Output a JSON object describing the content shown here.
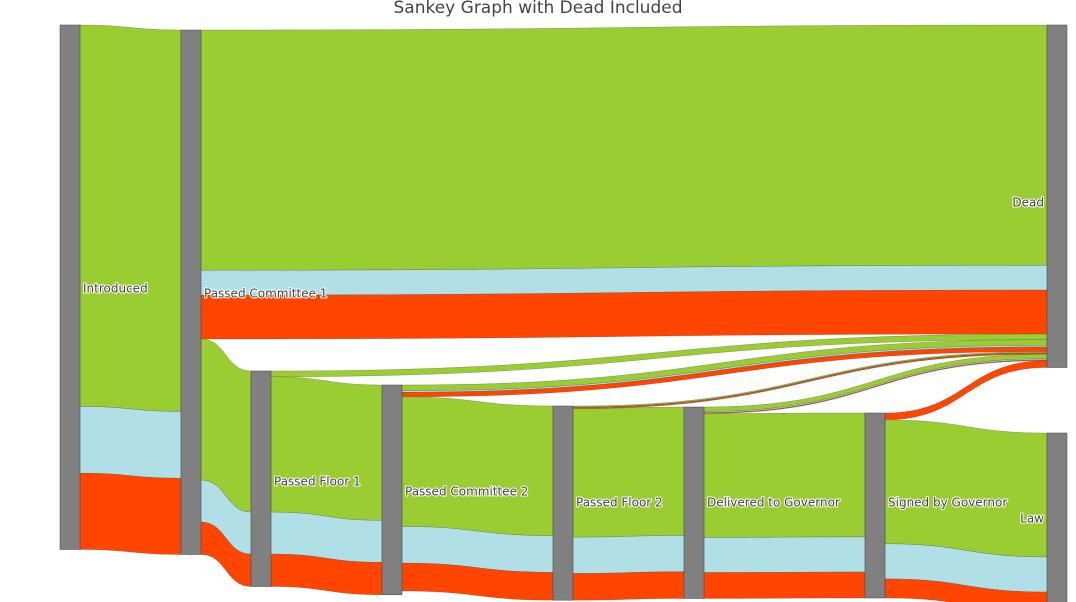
{
  "colors": {
    "node": "#808080",
    "dem": "#9acd32",
    "ind": "#b0e0e6",
    "rep": "#ff4500"
  },
  "chart_data": {
    "type": "sankey",
    "title": "Sankey Graph with Dead Included",
    "nodes": [
      {
        "id": "introduced",
        "label": "Introduced"
      },
      {
        "id": "pc1",
        "label": "Passed Committee 1"
      },
      {
        "id": "pf1",
        "label": "Passed Floor 1"
      },
      {
        "id": "pc2",
        "label": "Passed Committee 2"
      },
      {
        "id": "pf2",
        "label": "Passed Floor 2"
      },
      {
        "id": "dg",
        "label": "Delivered to Governor"
      },
      {
        "id": "sg",
        "label": "Signed by Governor"
      },
      {
        "id": "dead",
        "label": "Dead"
      },
      {
        "id": "law",
        "label": "Law"
      }
    ],
    "links": [
      {
        "source": "introduced",
        "target": "pc1",
        "group": "dem",
        "value": 1000
      },
      {
        "source": "introduced",
        "target": "pc1",
        "group": "ind",
        "value": 175
      },
      {
        "source": "introduced",
        "target": "pc1",
        "group": "rep",
        "value": 200
      },
      {
        "source": "pc1",
        "target": "dead",
        "group": "dem",
        "value": 630
      },
      {
        "source": "pc1",
        "target": "dead",
        "group": "ind",
        "value": 65
      },
      {
        "source": "pc1",
        "target": "dead",
        "group": "rep",
        "value": 115
      },
      {
        "source": "pc1",
        "target": "pf1",
        "group": "dem",
        "value": 370
      },
      {
        "source": "pc1",
        "target": "pf1",
        "group": "ind",
        "value": 110
      },
      {
        "source": "pc1",
        "target": "pf1",
        "group": "rep",
        "value": 85
      },
      {
        "source": "pf1",
        "target": "dead",
        "group": "dem",
        "value": 15
      },
      {
        "source": "pf1",
        "target": "pc2",
        "group": "dem",
        "value": 355
      },
      {
        "source": "pf1",
        "target": "pc2",
        "group": "ind",
        "value": 110
      },
      {
        "source": "pf1",
        "target": "pc2",
        "group": "rep",
        "value": 85
      },
      {
        "source": "pc2",
        "target": "dead",
        "group": "dem",
        "value": 15
      },
      {
        "source": "pc2",
        "target": "dead",
        "group": "ind",
        "value": 4
      },
      {
        "source": "pc2",
        "target": "dead",
        "group": "rep",
        "value": 12
      },
      {
        "source": "pc2",
        "target": "pf2",
        "group": "dem",
        "value": 340
      },
      {
        "source": "pc2",
        "target": "pf2",
        "group": "ind",
        "value": 96
      },
      {
        "source": "pc2",
        "target": "pf2",
        "group": "rep",
        "value": 73
      },
      {
        "source": "pf2",
        "target": "dead",
        "group": "dem",
        "value": 3
      },
      {
        "source": "pf2",
        "target": "dead",
        "group": "ind",
        "value": 1
      },
      {
        "source": "pf2",
        "target": "dead",
        "group": "rep",
        "value": 3
      },
      {
        "source": "pf2",
        "target": "dg",
        "group": "dem",
        "value": 337
      },
      {
        "source": "pf2",
        "target": "dg",
        "group": "ind",
        "value": 95
      },
      {
        "source": "pf2",
        "target": "dg",
        "group": "rep",
        "value": 70
      },
      {
        "source": "dg",
        "target": "dead",
        "group": "dem",
        "value": 12
      },
      {
        "source": "dg",
        "target": "dead",
        "group": "ind",
        "value": 3
      },
      {
        "source": "dg",
        "target": "dead",
        "group": "rep",
        "value": 2
      },
      {
        "source": "dg",
        "target": "sg",
        "group": "dem",
        "value": 325
      },
      {
        "source": "dg",
        "target": "sg",
        "group": "ind",
        "value": 92
      },
      {
        "source": "dg",
        "target": "sg",
        "group": "rep",
        "value": 68
      },
      {
        "source": "sg",
        "target": "dead",
        "group": "rep",
        "value": 18
      },
      {
        "source": "sg",
        "target": "law",
        "group": "dem",
        "value": 325
      },
      {
        "source": "sg",
        "target": "law",
        "group": "ind",
        "value": 92
      },
      {
        "source": "sg",
        "target": "law",
        "group": "rep",
        "value": 50
      }
    ]
  }
}
